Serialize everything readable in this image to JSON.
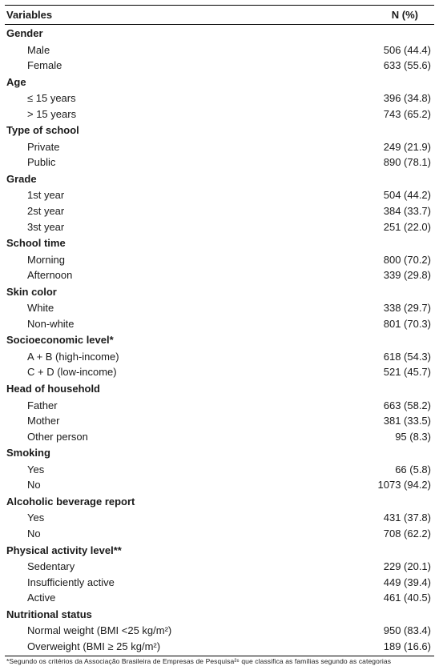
{
  "header": {
    "variables": "Variables",
    "n": "N (%)"
  },
  "sections": [
    {
      "title": "Gender",
      "rows": [
        {
          "label": "Male",
          "val": "506 (44.4)"
        },
        {
          "label": "Female",
          "val": "633 (55.6)"
        }
      ]
    },
    {
      "title": "Age",
      "rows": [
        {
          "label": "≤ 15 years",
          "val": "396 (34.8)"
        },
        {
          "label": "> 15 years",
          "val": "743 (65.2)"
        }
      ]
    },
    {
      "title": "Type of school",
      "rows": [
        {
          "label": "Private",
          "val": "249 (21.9)"
        },
        {
          "label": "Public",
          "val": "890 (78.1)"
        }
      ]
    },
    {
      "title": "Grade",
      "rows": [
        {
          "label": "1st year",
          "val": "504 (44.2)"
        },
        {
          "label": "2st year",
          "val": "384 (33.7)"
        },
        {
          "label": "3st year",
          "val": "251 (22.0)"
        }
      ]
    },
    {
      "title": "School time",
      "rows": [
        {
          "label": "Morning",
          "val": "800 (70.2)"
        },
        {
          "label": "Afternoon",
          "val": "339 (29.8)"
        }
      ]
    },
    {
      "title": "Skin color",
      "rows": [
        {
          "label": "White",
          "val": "338 (29.7)"
        },
        {
          "label": "Non-white",
          "val": "801 (70.3)"
        }
      ]
    },
    {
      "title": "Socioeconomic level*",
      "rows": [
        {
          "label": "A + B (high-income)",
          "val": "618 (54.3)"
        },
        {
          "label": "C + D (low-income)",
          "val": "521 (45.7)"
        }
      ]
    },
    {
      "title": "Head of household",
      "rows": [
        {
          "label": "Father",
          "val": "663 (58.2)"
        },
        {
          "label": "Mother",
          "val": "381 (33.5)"
        },
        {
          "label": "Other person",
          "val": "95 (8.3)"
        }
      ]
    },
    {
      "title": "Smoking",
      "rows": [
        {
          "label": "Yes",
          "val": "66 (5.8)"
        },
        {
          "label": "No",
          "val": "1073 (94.2)"
        }
      ]
    },
    {
      "title": "Alcoholic beverage report",
      "rows": [
        {
          "label": "Yes",
          "val": "431 (37.8)"
        },
        {
          "label": "No",
          "val": "708 (62.2)"
        }
      ]
    },
    {
      "title": "Physical activity level**",
      "rows": [
        {
          "label": "Sedentary",
          "val": "229 (20.1)"
        },
        {
          "label": "Insufficiently active",
          "val": "449 (39.4)"
        },
        {
          "label": "Active",
          "val": "461 (40.5)"
        }
      ]
    },
    {
      "title": "Nutritional status",
      "rows": [
        {
          "label": "Normal weight (BMI <25 kg/m²)",
          "val": "950 (83.4)"
        },
        {
          "label": "Overweight (BMI ≥ 25 kg/m²)",
          "val": "189 (16.6)"
        }
      ]
    }
  ],
  "footnote": "*Segundo os critérios da Associação Brasileira de Empresas de Pesquisa²⁶ que classifica as famílias segundo as categorias"
}
